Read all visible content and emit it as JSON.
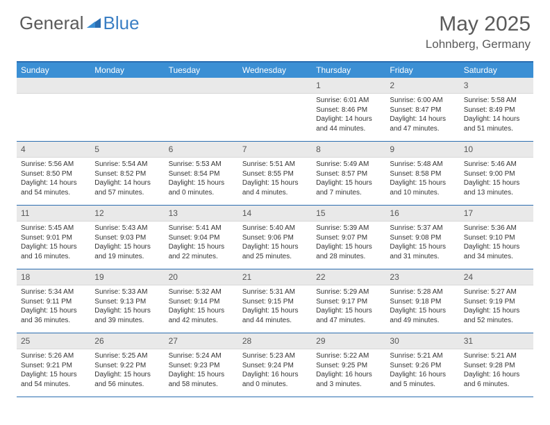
{
  "logo": {
    "left": "General",
    "right": "Blue"
  },
  "header": {
    "title": "May 2025",
    "location": "Lohnberg, Germany"
  },
  "daynames": [
    "Sunday",
    "Monday",
    "Tuesday",
    "Wednesday",
    "Thursday",
    "Friday",
    "Saturday"
  ],
  "colors": {
    "header_bar": "#3b8fd4",
    "border": "#2a6db0",
    "daynum_bg": "#e9e9e9",
    "text": "#5a5a5a"
  },
  "firstDayOffset": 4,
  "days": [
    {
      "n": 1,
      "sunrise": "6:01 AM",
      "sunset": "8:46 PM",
      "dl1": "Daylight: 14 hours",
      "dl2": "and 44 minutes."
    },
    {
      "n": 2,
      "sunrise": "6:00 AM",
      "sunset": "8:47 PM",
      "dl1": "Daylight: 14 hours",
      "dl2": "and 47 minutes."
    },
    {
      "n": 3,
      "sunrise": "5:58 AM",
      "sunset": "8:49 PM",
      "dl1": "Daylight: 14 hours",
      "dl2": "and 51 minutes."
    },
    {
      "n": 4,
      "sunrise": "5:56 AM",
      "sunset": "8:50 PM",
      "dl1": "Daylight: 14 hours",
      "dl2": "and 54 minutes."
    },
    {
      "n": 5,
      "sunrise": "5:54 AM",
      "sunset": "8:52 PM",
      "dl1": "Daylight: 14 hours",
      "dl2": "and 57 minutes."
    },
    {
      "n": 6,
      "sunrise": "5:53 AM",
      "sunset": "8:54 PM",
      "dl1": "Daylight: 15 hours",
      "dl2": "and 0 minutes."
    },
    {
      "n": 7,
      "sunrise": "5:51 AM",
      "sunset": "8:55 PM",
      "dl1": "Daylight: 15 hours",
      "dl2": "and 4 minutes."
    },
    {
      "n": 8,
      "sunrise": "5:49 AM",
      "sunset": "8:57 PM",
      "dl1": "Daylight: 15 hours",
      "dl2": "and 7 minutes."
    },
    {
      "n": 9,
      "sunrise": "5:48 AM",
      "sunset": "8:58 PM",
      "dl1": "Daylight: 15 hours",
      "dl2": "and 10 minutes."
    },
    {
      "n": 10,
      "sunrise": "5:46 AM",
      "sunset": "9:00 PM",
      "dl1": "Daylight: 15 hours",
      "dl2": "and 13 minutes."
    },
    {
      "n": 11,
      "sunrise": "5:45 AM",
      "sunset": "9:01 PM",
      "dl1": "Daylight: 15 hours",
      "dl2": "and 16 minutes."
    },
    {
      "n": 12,
      "sunrise": "5:43 AM",
      "sunset": "9:03 PM",
      "dl1": "Daylight: 15 hours",
      "dl2": "and 19 minutes."
    },
    {
      "n": 13,
      "sunrise": "5:41 AM",
      "sunset": "9:04 PM",
      "dl1": "Daylight: 15 hours",
      "dl2": "and 22 minutes."
    },
    {
      "n": 14,
      "sunrise": "5:40 AM",
      "sunset": "9:06 PM",
      "dl1": "Daylight: 15 hours",
      "dl2": "and 25 minutes."
    },
    {
      "n": 15,
      "sunrise": "5:39 AM",
      "sunset": "9:07 PM",
      "dl1": "Daylight: 15 hours",
      "dl2": "and 28 minutes."
    },
    {
      "n": 16,
      "sunrise": "5:37 AM",
      "sunset": "9:08 PM",
      "dl1": "Daylight: 15 hours",
      "dl2": "and 31 minutes."
    },
    {
      "n": 17,
      "sunrise": "5:36 AM",
      "sunset": "9:10 PM",
      "dl1": "Daylight: 15 hours",
      "dl2": "and 34 minutes."
    },
    {
      "n": 18,
      "sunrise": "5:34 AM",
      "sunset": "9:11 PM",
      "dl1": "Daylight: 15 hours",
      "dl2": "and 36 minutes."
    },
    {
      "n": 19,
      "sunrise": "5:33 AM",
      "sunset": "9:13 PM",
      "dl1": "Daylight: 15 hours",
      "dl2": "and 39 minutes."
    },
    {
      "n": 20,
      "sunrise": "5:32 AM",
      "sunset": "9:14 PM",
      "dl1": "Daylight: 15 hours",
      "dl2": "and 42 minutes."
    },
    {
      "n": 21,
      "sunrise": "5:31 AM",
      "sunset": "9:15 PM",
      "dl1": "Daylight: 15 hours",
      "dl2": "and 44 minutes."
    },
    {
      "n": 22,
      "sunrise": "5:29 AM",
      "sunset": "9:17 PM",
      "dl1": "Daylight: 15 hours",
      "dl2": "and 47 minutes."
    },
    {
      "n": 23,
      "sunrise": "5:28 AM",
      "sunset": "9:18 PM",
      "dl1": "Daylight: 15 hours",
      "dl2": "and 49 minutes."
    },
    {
      "n": 24,
      "sunrise": "5:27 AM",
      "sunset": "9:19 PM",
      "dl1": "Daylight: 15 hours",
      "dl2": "and 52 minutes."
    },
    {
      "n": 25,
      "sunrise": "5:26 AM",
      "sunset": "9:21 PM",
      "dl1": "Daylight: 15 hours",
      "dl2": "and 54 minutes."
    },
    {
      "n": 26,
      "sunrise": "5:25 AM",
      "sunset": "9:22 PM",
      "dl1": "Daylight: 15 hours",
      "dl2": "and 56 minutes."
    },
    {
      "n": 27,
      "sunrise": "5:24 AM",
      "sunset": "9:23 PM",
      "dl1": "Daylight: 15 hours",
      "dl2": "and 58 minutes."
    },
    {
      "n": 28,
      "sunrise": "5:23 AM",
      "sunset": "9:24 PM",
      "dl1": "Daylight: 16 hours",
      "dl2": "and 0 minutes."
    },
    {
      "n": 29,
      "sunrise": "5:22 AM",
      "sunset": "9:25 PM",
      "dl1": "Daylight: 16 hours",
      "dl2": "and 3 minutes."
    },
    {
      "n": 30,
      "sunrise": "5:21 AM",
      "sunset": "9:26 PM",
      "dl1": "Daylight: 16 hours",
      "dl2": "and 5 minutes."
    },
    {
      "n": 31,
      "sunrise": "5:21 AM",
      "sunset": "9:28 PM",
      "dl1": "Daylight: 16 hours",
      "dl2": "and 6 minutes."
    }
  ]
}
